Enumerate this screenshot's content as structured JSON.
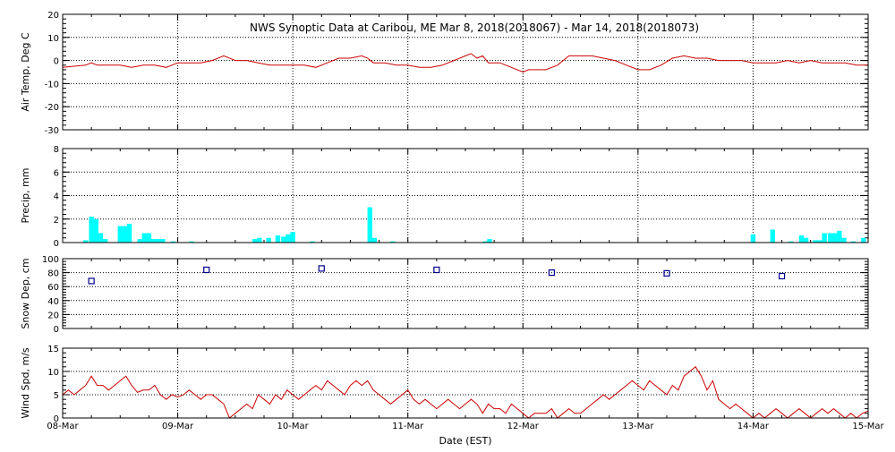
{
  "title": "NWS Synoptic Data at Caribou, ME   Mar  8, 2018(2018067) - Mar 14, 2018(2018073)",
  "xlabel": "Date (EST)",
  "date_ticks": [
    "08-Mar",
    "09-Mar",
    "10-Mar",
    "11-Mar",
    "12-Mar",
    "13-Mar",
    "14-Mar",
    "15-Mar"
  ],
  "colors": {
    "temp": "#cc0000",
    "precip": "#00ffff",
    "snow": "#00008b",
    "wind": "#cc0000",
    "grid": "#000000"
  },
  "chart_data": [
    {
      "id": "temp",
      "type": "line",
      "ylabel": "Air Temp, Deg C",
      "ylim": [
        -30,
        20
      ],
      "yticks": [
        20,
        10,
        0,
        -10,
        -20,
        -30
      ],
      "xlim": [
        0,
        7
      ],
      "x": [
        0,
        0.1,
        0.2,
        0.25,
        0.3,
        0.4,
        0.5,
        0.6,
        0.7,
        0.8,
        0.9,
        1.0,
        1.1,
        1.2,
        1.3,
        1.4,
        1.5,
        1.6,
        1.7,
        1.8,
        1.9,
        2.0,
        2.1,
        2.2,
        2.3,
        2.4,
        2.5,
        2.6,
        2.65,
        2.7,
        2.8,
        2.9,
        3.0,
        3.1,
        3.2,
        3.3,
        3.4,
        3.5,
        3.55,
        3.6,
        3.65,
        3.7,
        3.8,
        3.9,
        4.0,
        4.05,
        4.1,
        4.2,
        4.3,
        4.4,
        4.5,
        4.6,
        4.7,
        4.8,
        4.9,
        5.0,
        5.1,
        5.2,
        5.3,
        5.4,
        5.5,
        5.6,
        5.7,
        5.8,
        5.9,
        6.0,
        6.1,
        6.2,
        6.3,
        6.4,
        6.5,
        6.6,
        6.7,
        6.8,
        6.9,
        7.0
      ],
      "y": [
        -3,
        -2.5,
        -2,
        -1,
        -2,
        -2,
        -2,
        -3,
        -2,
        -2,
        -3,
        -1,
        -1,
        -1,
        0,
        2,
        0,
        0,
        -1,
        -2,
        -2,
        -2,
        -2,
        -3,
        -1,
        1,
        1,
        2,
        1,
        -1,
        -1,
        -2,
        -2,
        -3,
        -3,
        -2,
        0,
        2,
        3,
        1,
        2,
        -1,
        -1,
        -3,
        -5,
        -4,
        -4,
        -4,
        -2,
        2,
        2,
        2,
        1,
        0,
        -2,
        -4,
        -4,
        -2,
        1,
        2,
        1,
        1,
        0,
        0,
        0,
        -1,
        -1,
        -1,
        0,
        -1,
        0,
        -1,
        -1,
        -1,
        -2,
        -2
      ]
    },
    {
      "id": "precip",
      "type": "bar",
      "ylabel": "Precip, mm",
      "ylim": [
        0,
        8
      ],
      "yticks": [
        8,
        6,
        4,
        2,
        0
      ],
      "xlim": [
        0,
        7
      ],
      "bar_width_days": 0.0417,
      "x": [
        0.2,
        0.25,
        0.29,
        0.33,
        0.37,
        0.5,
        0.54,
        0.58,
        0.67,
        0.71,
        0.75,
        0.79,
        0.83,
        0.87,
        0.96,
        1.12,
        1.67,
        1.71,
        1.79,
        1.87,
        1.92,
        1.96,
        2.0,
        2.17,
        2.67,
        2.71,
        2.87,
        3.67,
        3.71,
        6.0,
        6.17,
        6.33,
        6.42,
        6.46,
        6.54,
        6.58,
        6.62,
        6.67,
        6.71,
        6.75,
        6.79,
        6.87,
        6.96
      ],
      "values": [
        0.2,
        2.2,
        2.0,
        0.8,
        0.3,
        1.4,
        1.4,
        1.6,
        0.3,
        0.8,
        0.8,
        0.3,
        0.3,
        0.3,
        0.1,
        0.1,
        0.3,
        0.4,
        0.4,
        0.6,
        0.5,
        0.7,
        0.9,
        0.1,
        3.0,
        0.4,
        0.1,
        0.1,
        0.3,
        0.7,
        1.1,
        0.1,
        0.6,
        0.4,
        0.2,
        0.2,
        0.8,
        0.8,
        0.8,
        1.0,
        0.4,
        0.1,
        0.4
      ]
    },
    {
      "id": "snow",
      "type": "scatter",
      "ylabel": "Snow Dep, cm",
      "ylim": [
        0,
        100
      ],
      "yticks": [
        100,
        80,
        60,
        40,
        20,
        0
      ],
      "xlim": [
        0,
        7
      ],
      "x": [
        0.25,
        1.25,
        2.25,
        3.25,
        4.25,
        5.25,
        6.25
      ],
      "y": [
        68,
        84,
        86,
        84,
        80,
        79,
        75
      ]
    },
    {
      "id": "wind",
      "type": "line",
      "ylabel": "Wind Spd, m/s",
      "ylim": [
        0,
        15
      ],
      "yticks": [
        15,
        10,
        5,
        0
      ],
      "xlim": [
        0,
        7
      ],
      "x": [
        0,
        0.05,
        0.1,
        0.15,
        0.2,
        0.25,
        0.3,
        0.35,
        0.4,
        0.45,
        0.5,
        0.55,
        0.6,
        0.65,
        0.7,
        0.75,
        0.8,
        0.85,
        0.9,
        0.95,
        1.0,
        1.05,
        1.1,
        1.15,
        1.2,
        1.25,
        1.3,
        1.35,
        1.4,
        1.45,
        1.5,
        1.55,
        1.6,
        1.65,
        1.7,
        1.75,
        1.8,
        1.85,
        1.9,
        1.95,
        2.0,
        2.05,
        2.1,
        2.15,
        2.2,
        2.25,
        2.3,
        2.35,
        2.4,
        2.45,
        2.5,
        2.55,
        2.6,
        2.65,
        2.7,
        2.75,
        2.8,
        2.85,
        2.9,
        2.95,
        3.0,
        3.05,
        3.1,
        3.15,
        3.2,
        3.25,
        3.3,
        3.35,
        3.4,
        3.45,
        3.5,
        3.55,
        3.6,
        3.65,
        3.7,
        3.75,
        3.8,
        3.85,
        3.9,
        3.95,
        4.0,
        4.05,
        4.1,
        4.15,
        4.2,
        4.25,
        4.3,
        4.35,
        4.4,
        4.45,
        4.5,
        4.55,
        4.6,
        4.65,
        4.7,
        4.75,
        4.8,
        4.85,
        4.9,
        4.95,
        5.0,
        5.05,
        5.1,
        5.15,
        5.2,
        5.25,
        5.3,
        5.35,
        5.4,
        5.45,
        5.5,
        5.55,
        5.6,
        5.65,
        5.7,
        5.75,
        5.8,
        5.85,
        5.9,
        5.95,
        6.0,
        6.05,
        6.1,
        6.15,
        6.2,
        6.25,
        6.3,
        6.35,
        6.4,
        6.45,
        6.5,
        6.55,
        6.6,
        6.65,
        6.7,
        6.75,
        6.8,
        6.85,
        6.9,
        6.95,
        7.0
      ],
      "y": [
        5,
        6,
        5,
        6,
        7,
        9,
        7,
        7,
        6,
        7,
        8,
        9,
        7,
        5.5,
        6,
        6,
        7,
        5,
        4,
        5,
        4.5,
        5,
        6,
        5,
        4,
        5,
        5,
        4,
        3,
        0,
        1,
        2,
        3,
        2,
        5,
        4,
        3,
        5,
        4,
        6,
        5,
        4,
        5,
        6,
        7,
        6,
        8,
        7,
        6,
        5,
        7,
        8,
        7,
        8,
        6,
        5,
        4,
        3,
        4,
        5,
        6,
        4,
        3,
        4,
        3,
        2,
        3,
        4,
        3,
        2,
        3,
        4,
        3,
        1,
        3,
        2,
        2,
        1,
        3,
        2,
        1,
        0,
        1,
        1,
        1,
        2,
        0,
        1,
        2,
        1,
        1,
        2,
        3,
        4,
        5,
        4,
        5,
        6,
        7,
        8,
        7,
        6,
        8,
        7,
        6,
        5,
        7,
        6,
        9,
        10,
        11,
        9,
        6,
        8,
        4,
        3,
        2,
        3,
        2,
        1,
        0,
        1,
        0,
        1,
        2,
        1,
        0,
        1,
        2,
        1,
        0,
        1,
        2,
        1,
        2,
        1,
        0,
        1,
        0,
        1,
        1.5
      ]
    }
  ]
}
